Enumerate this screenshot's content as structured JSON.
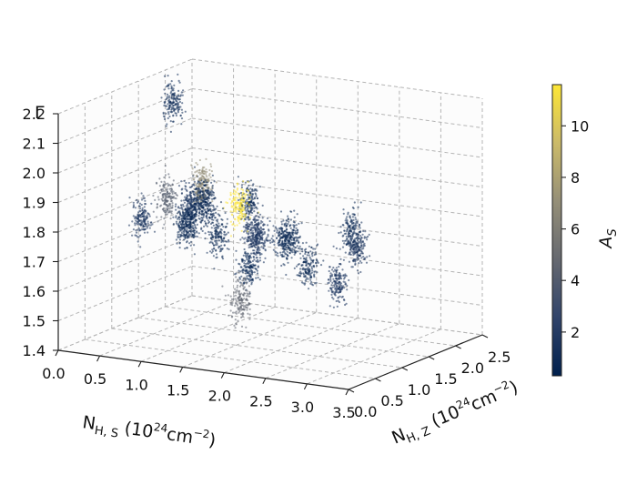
{
  "chart_data": {
    "type": "scatter",
    "projection": "3d",
    "x_axis": {
      "label_main": "N",
      "label_sub": "H, S",
      "label_unit_pre": " (10",
      "label_unit_exp": "24",
      "label_unit_mid": "cm",
      "label_unit_exp2": "−2",
      "label_unit_post": ")",
      "range": [
        0.0,
        3.5
      ],
      "ticks": [
        "0.0",
        "0.5",
        "1.0",
        "1.5",
        "2.0",
        "2.5",
        "3.0",
        "3.5"
      ]
    },
    "y_axis": {
      "label_main": "N",
      "label_sub": "H, Z",
      "label_unit_pre": " (10",
      "label_unit_exp": "24",
      "label_unit_mid": "cm",
      "label_unit_exp2": "−2",
      "label_unit_post": ")",
      "range": [
        0.0,
        2.5
      ],
      "ticks": [
        "0.0",
        "0.5",
        "1.0",
        "1.5",
        "2.0",
        "2.5"
      ]
    },
    "z_axis": {
      "label": "Γ",
      "range": [
        1.4,
        2.2
      ],
      "ticks": [
        "1.4",
        "1.5",
        "1.6",
        "1.7",
        "1.8",
        "1.9",
        "2.0",
        "2.1",
        "2.2"
      ]
    },
    "colorbar": {
      "label_main": "A",
      "label_sub": "S",
      "range": [
        0.3,
        11.6
      ],
      "ticks": [
        "2",
        "4",
        "6",
        "8",
        "10"
      ],
      "colormap": "cividis",
      "colors": [
        "#00204d",
        "#31446b",
        "#666970",
        "#958f78",
        "#cbba69",
        "#fde636"
      ]
    },
    "grid": true,
    "clusters": [
      {
        "x": 3.3,
        "y": 0.1,
        "z": 1.74,
        "A_S": 1.2
      },
      {
        "x": 2.05,
        "y": 2.3,
        "z": 1.71,
        "A_S": 1.1
      },
      {
        "x": 2.15,
        "y": 2.25,
        "z": 1.66,
        "A_S": 1.3
      },
      {
        "x": 1.15,
        "y": 1.2,
        "z": 1.74,
        "A_S": 1.1
      },
      {
        "x": 0.85,
        "y": 0.25,
        "z": 1.86,
        "A_S": 1.5
      },
      {
        "x": 1.35,
        "y": 0.05,
        "z": 2.29,
        "A_S": 0.9
      },
      {
        "x": 1.7,
        "y": 0.15,
        "z": 1.95,
        "A_S": 0.6
      },
      {
        "x": 1.6,
        "y": 0.9,
        "z": 1.88,
        "A_S": 11.5
      },
      {
        "x": 1.55,
        "y": 0.3,
        "z": 2.0,
        "A_S": 7.0
      },
      {
        "x": 2.1,
        "y": 1.1,
        "z": 1.78,
        "A_S": 1.0
      },
      {
        "x": 2.0,
        "y": 0.3,
        "z": 1.62,
        "A_S": 4.5
      },
      {
        "x": 2.7,
        "y": 0.5,
        "z": 1.75,
        "A_S": 1.0
      },
      {
        "x": 0.3,
        "y": 1.9,
        "z": 1.69,
        "A_S": 1.0
      },
      {
        "x": 0.05,
        "y": 1.95,
        "z": 1.77,
        "A_S": 4.0
      },
      {
        "x": 0.5,
        "y": 1.7,
        "z": 1.79,
        "A_S": 1.4
      },
      {
        "x": 0.8,
        "y": 1.2,
        "z": 1.77,
        "A_S": 1.0
      },
      {
        "x": 1.0,
        "y": 1.1,
        "z": 1.86,
        "A_S": 0.8
      },
      {
        "x": 1.7,
        "y": 1.1,
        "z": 1.76,
        "A_S": 1.2
      },
      {
        "x": 1.75,
        "y": 1.5,
        "z": 1.73,
        "A_S": 0.9
      },
      {
        "x": 1.9,
        "y": 0.7,
        "z": 1.82,
        "A_S": 2.0
      },
      {
        "x": 1.2,
        "y": 1.7,
        "z": 1.6,
        "A_S": 0.5
      },
      {
        "x": 1.3,
        "y": 1.55,
        "z": 1.83,
        "A_S": 1.0
      }
    ]
  }
}
